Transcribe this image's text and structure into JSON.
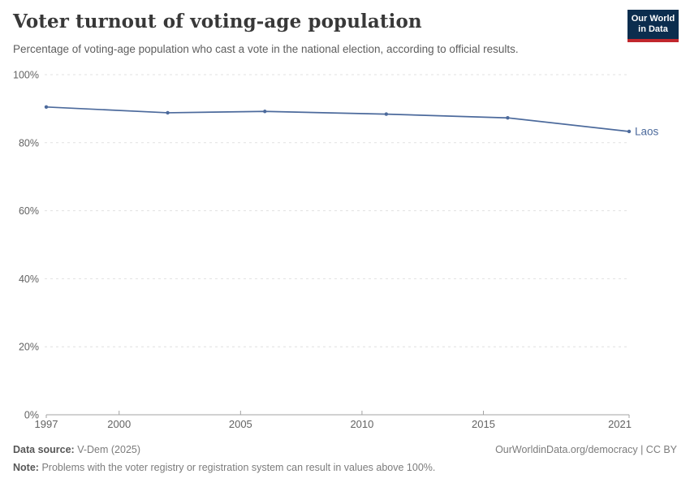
{
  "header": {
    "title": "Voter turnout of voting-age population",
    "subtitle": "Percentage of voting-age population who cast a vote in the national election, according to official results.",
    "logo": {
      "line1": "Our World",
      "line2": "in Data"
    }
  },
  "chart_data": {
    "type": "line",
    "title": "Voter turnout of voting-age population",
    "xlabel": "",
    "ylabel": "",
    "xlim": [
      1997,
      2021
    ],
    "ylim": [
      0,
      100
    ],
    "x_ticks": [
      1997,
      2000,
      2005,
      2010,
      2015,
      2021
    ],
    "y_ticks": [
      0,
      20,
      40,
      60,
      80,
      100
    ],
    "y_tick_suffix": "%",
    "grid": "horizontal-dashed",
    "legend_position": "end-of-line-label",
    "series": [
      {
        "name": "Laos",
        "color": "#4c6a9c",
        "x": [
          1997,
          2002,
          2006,
          2011,
          2016,
          2021
        ],
        "values": [
          90.5,
          88.8,
          89.2,
          88.4,
          87.3,
          83.3
        ]
      }
    ]
  },
  "footer": {
    "source_label": "Data source:",
    "source_value": "V-Dem (2025)",
    "right_text": "OurWorldinData.org/democracy | CC BY",
    "note_label": "Note:",
    "note_value": "Problems with the voter registry or registration system can result in values above 100%."
  },
  "colors": {
    "accent_line": "#4c6a9c",
    "grid": "#e0e0e0",
    "axis": "#a3a3a3",
    "tick_label": "#636363",
    "title": "#383838",
    "subtitle": "#5e5e5e",
    "footer_text": "#7c7c7c",
    "footer_bold": "#575757",
    "logo_bg": "#0b2d4e",
    "logo_stripe": "#c1272d"
  }
}
